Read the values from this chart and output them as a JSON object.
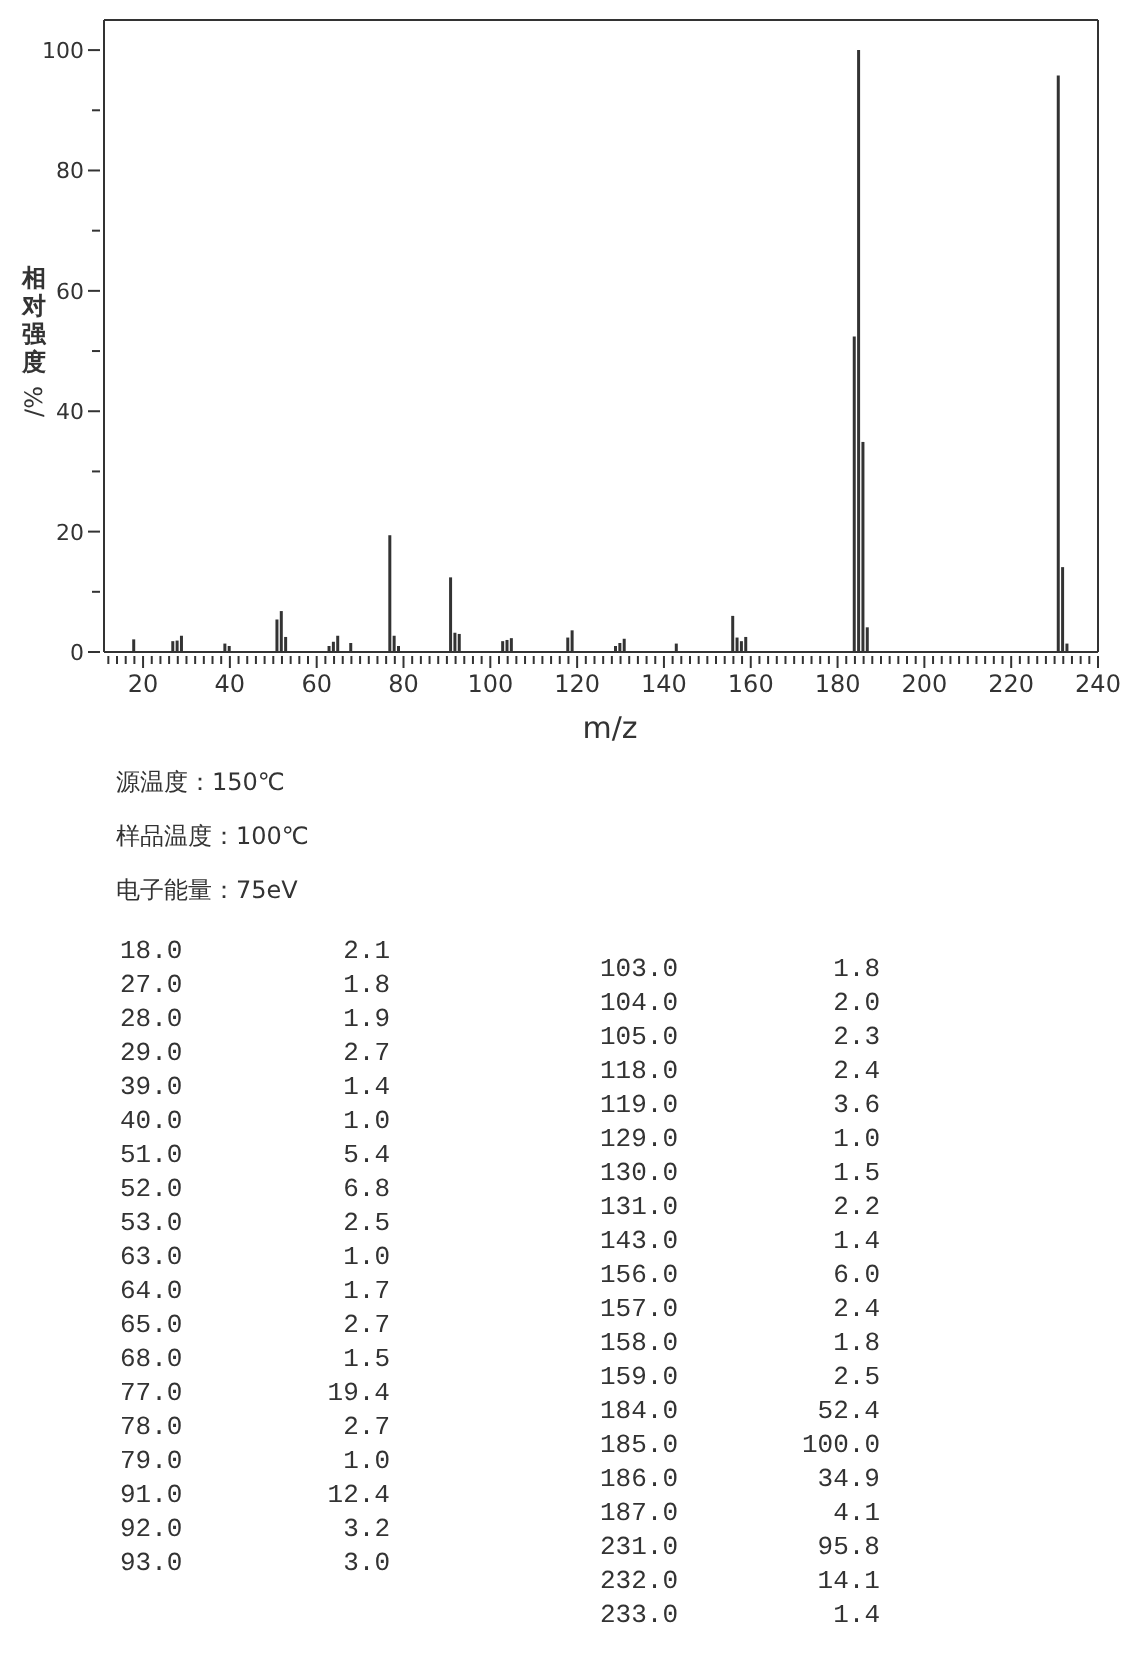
{
  "chart_data": {
    "type": "bar",
    "xlabel": "m/z",
    "ylabel": "相对强度/%",
    "annotations": [
      "源温度：150℃",
      "样品温度：100℃",
      "电子能量：75eV",
      "18.0",
      "2.1",
      "27.0",
      "1.8",
      "28.0",
      "1.9",
      "29.0",
      "2.7",
      "39.0",
      "1.4",
      "40.0",
      "1.0",
      "51.0",
      "5.4",
      "52.0",
      "6.8",
      "53.0",
      "2.5",
      "63.0",
      "1.0",
      "64.0",
      "1.7",
      "65.0",
      "2.7",
      "68.0",
      "1.5",
      "77.0",
      "19.4",
      "78.0",
      "2.7",
      "79.0",
      "1.0",
      "91.0",
      "12.4",
      "92.0",
      "3.2",
      "93.0",
      "3.0",
      "103.0",
      "1.8",
      "104.0",
      "2.0",
      "105.0",
      "2.3",
      "118.0",
      "2.4",
      "119.0",
      "3.6",
      "129.0",
      "1.0",
      "130.0",
      "1.5",
      "131.0",
      "2.2",
      "143.0",
      "1.4",
      "156.0",
      "6.0",
      "157.0",
      "2.4",
      "158.0",
      "1.8",
      "159.0",
      "2.5",
      "184.0",
      "52.4",
      "185.0",
      "100.0",
      "186.0",
      "34.9",
      "187.0",
      "4.1",
      "231.0",
      "95.8",
      "232.0",
      "14.1",
      "233.0",
      "1.4"
    ],
    "x": [
      18,
      27,
      28,
      29,
      39,
      40,
      51,
      52,
      53,
      63,
      64,
      65,
      68,
      77,
      78,
      79,
      91,
      92,
      93,
      103,
      104,
      105,
      118,
      119,
      129,
      130,
      131,
      143,
      156,
      157,
      158,
      159,
      184,
      185,
      186,
      187,
      231,
      232,
      233
    ],
    "series": [
      {
        "color": "#333333",
        "values": [
          2.1,
          1.8,
          1.9,
          2.7,
          1.4,
          1.0,
          5.4,
          6.8,
          2.5,
          1.0,
          1.7,
          2.7,
          1.5,
          19.4,
          2.7,
          1.0,
          12.4,
          3.2,
          3.0,
          1.8,
          2.0,
          2.3,
          2.4,
          3.6,
          1.0,
          1.5,
          2.2,
          1.4,
          6.0,
          2.4,
          1.8,
          2.5,
          52.4,
          100.0,
          34.9,
          4.1,
          95.8,
          14.1,
          1.4
        ]
      }
    ],
    "xlim": [
      11,
      240
    ],
    "xticks": [
      {
        "value": 12,
        "label": null
      },
      {
        "value": 14,
        "label": null
      },
      {
        "value": 16,
        "label": null
      },
      {
        "value": 18,
        "label": null
      },
      20,
      {
        "value": 22,
        "label": null
      },
      {
        "value": 24,
        "label": null
      },
      {
        "value": 26,
        "label": null
      },
      {
        "value": 28,
        "label": null
      },
      {
        "value": 30,
        "label": null
      },
      {
        "value": 32,
        "label": null
      },
      {
        "value": 34,
        "label": null
      },
      {
        "value": 36,
        "label": null
      },
      {
        "value": 38,
        "label": null
      },
      40,
      {
        "value": 42,
        "label": null
      },
      {
        "value": 44,
        "label": null
      },
      {
        "value": 46,
        "label": null
      },
      {
        "value": 48,
        "label": null
      },
      {
        "value": 50,
        "label": null
      },
      {
        "value": 52,
        "label": null
      },
      {
        "value": 54,
        "label": null
      },
      {
        "value": 56,
        "label": null
      },
      {
        "value": 58,
        "label": null
      },
      60,
      {
        "value": 62,
        "label": null
      },
      {
        "value": 64,
        "label": null
      },
      {
        "value": 66,
        "label": null
      },
      {
        "value": 68,
        "label": null
      },
      {
        "value": 70,
        "label": null
      },
      {
        "value": 72,
        "label": null
      },
      {
        "value": 74,
        "label": null
      },
      {
        "value": 76,
        "label": null
      },
      {
        "value": 78,
        "label": null
      },
      80,
      {
        "value": 82,
        "label": null
      },
      {
        "value": 84,
        "label": null
      },
      {
        "value": 86,
        "label": null
      },
      {
        "value": 88,
        "label": null
      },
      {
        "value": 90,
        "label": null
      },
      {
        "value": 92,
        "label": null
      },
      {
        "value": 94,
        "label": null
      },
      {
        "value": 96,
        "label": null
      },
      {
        "value": 98,
        "label": null
      },
      100,
      {
        "value": 102,
        "label": null
      },
      {
        "value": 104,
        "label": null
      },
      {
        "value": 106,
        "label": null
      },
      {
        "value": 108,
        "label": null
      },
      {
        "value": 110,
        "label": null
      },
      {
        "value": 112,
        "label": null
      },
      {
        "value": 114,
        "label": null
      },
      {
        "value": 116,
        "label": null
      },
      {
        "value": 118,
        "label": null
      },
      120,
      {
        "value": 122,
        "label": null
      },
      {
        "value": 124,
        "label": null
      },
      {
        "value": 126,
        "label": null
      },
      {
        "value": 128,
        "label": null
      },
      {
        "value": 130,
        "label": null
      },
      {
        "value": 132,
        "label": null
      },
      {
        "value": 134,
        "label": null
      },
      {
        "value": 136,
        "label": null
      },
      {
        "value": 138,
        "label": null
      },
      140,
      {
        "value": 142,
        "label": null
      },
      {
        "value": 144,
        "label": null
      },
      {
        "value": 146,
        "label": null
      },
      {
        "value": 148,
        "label": null
      },
      {
        "value": 150,
        "label": null
      },
      {
        "value": 152,
        "label": null
      },
      {
        "value": 154,
        "label": null
      },
      {
        "value": 156,
        "label": null
      },
      {
        "value": 158,
        "label": null
      },
      160,
      {
        "value": 162,
        "label": null
      },
      {
        "value": 164,
        "label": null
      },
      {
        "value": 166,
        "label": null
      },
      {
        "value": 168,
        "label": null
      },
      {
        "value": 170,
        "label": null
      },
      {
        "value": 172,
        "label": null
      },
      {
        "value": 174,
        "label": null
      },
      {
        "value": 176,
        "label": null
      },
      {
        "value": 178,
        "label": null
      },
      180,
      {
        "value": 182,
        "label": null
      },
      {
        "value": 184,
        "label": null
      },
      {
        "value": 186,
        "label": null
      },
      {
        "value": 188,
        "label": null
      },
      {
        "value": 190,
        "label": null
      },
      {
        "value": 192,
        "label": null
      },
      {
        "value": 194,
        "label": null
      },
      {
        "value": 196,
        "label": null
      },
      {
        "value": 198,
        "label": null
      },
      200,
      {
        "value": 202,
        "label": null
      },
      {
        "value": 204,
        "label": null
      },
      {
        "value": 206,
        "label": null
      },
      {
        "value": 208,
        "label": null
      },
      {
        "value": 210,
        "label": null
      },
      {
        "value": 212,
        "label": null
      },
      {
        "value": 214,
        "label": null
      },
      {
        "value": 216,
        "label": null
      },
      {
        "value": 218,
        "label": null
      },
      220,
      {
        "value": 222,
        "label": null
      },
      {
        "value": 224,
        "label": null
      },
      {
        "value": 226,
        "label": null
      },
      {
        "value": 228,
        "label": null
      },
      {
        "value": 230,
        "label": null
      },
      {
        "value": 232,
        "label": null
      },
      {
        "value": 234,
        "label": null
      },
      {
        "value": 236,
        "label": null
      },
      {
        "value": 238,
        "label": null
      },
      240
    ],
    "ylim": [
      0,
      105
    ],
    "yticks": [
      0,
      {
        "value": 10,
        "label": null
      },
      20,
      {
        "value": 30,
        "label": null
      },
      40,
      {
        "value": 50,
        "label": null
      },
      60,
      {
        "value": 70,
        "label": null
      },
      80,
      {
        "value": 90,
        "label": null
      },
      100
    ]
  }
}
